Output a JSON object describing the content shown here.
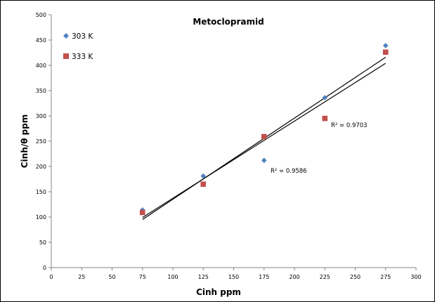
{
  "chart_data": {
    "type": "scatter",
    "title": "Metoclopramid",
    "xlabel": "Cinh  ppm",
    "ylabel": "Cinh/θ ppm",
    "xlim": [
      0,
      300
    ],
    "ylim": [
      0,
      500
    ],
    "x_ticks": [
      0,
      25,
      50,
      75,
      100,
      125,
      150,
      175,
      200,
      225,
      250,
      275,
      300
    ],
    "y_ticks": [
      0,
      50,
      100,
      150,
      200,
      250,
      300,
      350,
      400,
      450,
      500
    ],
    "grid": false,
    "legend_position": "top-left",
    "series": [
      {
        "name": "303 K",
        "marker": "diamond",
        "color": "#4F81BD",
        "x": [
          75,
          125,
          175,
          225,
          275
        ],
        "y": [
          114,
          181,
          212,
          336,
          439
        ],
        "trendline": {
          "x": [
            75,
            275
          ],
          "y": [
            95,
            416
          ]
        },
        "r2_label": "R² = 0.9586"
      },
      {
        "name": "333 K",
        "marker": "square",
        "color": "#C0504D",
        "x": [
          75,
          125,
          175,
          225,
          275
        ],
        "y": [
          109,
          165,
          259,
          295,
          426
        ],
        "trendline": {
          "x": [
            75,
            275
          ],
          "y": [
            99,
            404
          ]
        },
        "r2_label": "R² = 0.9703"
      }
    ]
  }
}
